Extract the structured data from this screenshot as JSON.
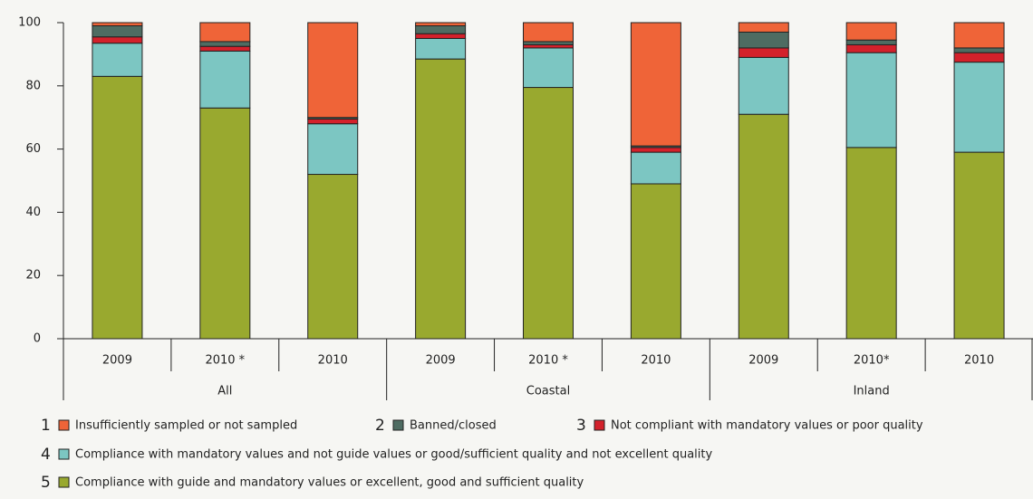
{
  "chart_data": {
    "type": "stacked_bar",
    "categories": [
      "2009",
      "2010 *",
      "2010",
      "2009",
      "2010 *",
      "2010",
      "2009",
      "2010*",
      "2010"
    ],
    "groups": [
      "All",
      "Coastal",
      "Inland"
    ],
    "legend_numbers": [
      "1",
      "2",
      "3",
      "4",
      "5"
    ],
    "series": [
      {
        "name": "Insufficiently sampled or not sampled",
        "color": "#ef6438",
        "values": [
          1,
          6,
          30,
          1,
          6,
          39,
          3,
          5.5,
          8
        ]
      },
      {
        "name": "Banned/closed",
        "color": "#4e6c62",
        "values": [
          3.5,
          1.5,
          0.5,
          2.5,
          1,
          0.5,
          5,
          1.5,
          1.5
        ]
      },
      {
        "name": "Not compliant with mandatory values or poor quality",
        "color": "#d3212b",
        "values": [
          2,
          1.5,
          1.5,
          1.5,
          1,
          1.5,
          3,
          2.5,
          3
        ]
      },
      {
        "name": "Compliance with mandatory values and not guide values or good/sufficient quality and not excellent quality",
        "color": "#7cc6c2",
        "values": [
          10.5,
          18,
          16,
          6.5,
          12.5,
          10,
          18,
          30,
          28.5
        ]
      },
      {
        "name": "Compliance with guide and mandatory values or excellent, good and sufficient quality",
        "color": "#99a92f",
        "values": [
          83,
          73,
          52,
          88.5,
          79.5,
          49,
          71,
          60.5,
          59
        ]
      }
    ],
    "ylim": [
      0,
      100
    ],
    "yticks": [
      0,
      20,
      40,
      60,
      80,
      100
    ]
  }
}
